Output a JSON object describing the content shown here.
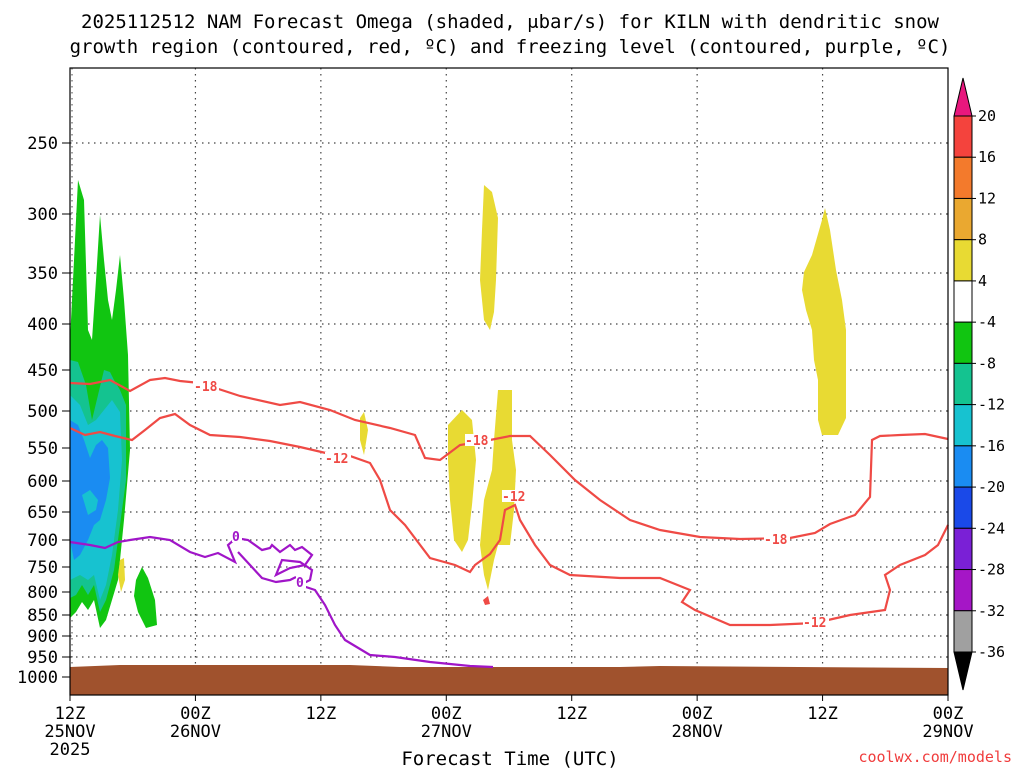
{
  "chart_data": {
    "type": "contour",
    "title_line1": "2025112512 NAM Forecast Omega (shaded, μbar/s) for KILN with dendritic snow",
    "title_line2": "growth region (contoured, red, ºC) and freezing level (contoured, purple, ºC)",
    "xlabel": "Forecast Time (UTC)",
    "credit": "coolwx.com/models",
    "x_ticks": [
      {
        "hour": 0,
        "label": "12Z",
        "sub": "25NOV",
        "sub2": "2025"
      },
      {
        "hour": 12,
        "label": "00Z",
        "sub": "26NOV",
        "sub2": ""
      },
      {
        "hour": 24,
        "label": "12Z",
        "sub": "",
        "sub2": ""
      },
      {
        "hour": 36,
        "label": "00Z",
        "sub": "27NOV",
        "sub2": ""
      },
      {
        "hour": 48,
        "label": "12Z",
        "sub": "",
        "sub2": ""
      },
      {
        "hour": 60,
        "label": "00Z",
        "sub": "28NOV",
        "sub2": ""
      },
      {
        "hour": 72,
        "label": "12Z",
        "sub": "",
        "sub2": ""
      },
      {
        "hour": 84,
        "label": "00Z",
        "sub": "29NOV",
        "sub2": ""
      }
    ],
    "y_ticks": [
      "250",
      "300",
      "350",
      "400",
      "450",
      "500",
      "550",
      "600",
      "650",
      "700",
      "750",
      "800",
      "850",
      "900",
      "950",
      "1000"
    ],
    "colorbar": {
      "labels": [
        "20",
        "16",
        "12",
        "8",
        "4",
        "-4",
        "-8",
        "-12",
        "-16",
        "-20",
        "-24",
        "-28",
        "-32",
        "-36"
      ],
      "colors": [
        "#e8177d",
        "#f4433d",
        "#f37a2c",
        "#eaa830",
        "#e8da33",
        "#ffffff",
        "#11c511",
        "#14c390",
        "#17c2d0",
        "#1a8cf2",
        "#1a49e8",
        "#7a20d6",
        "#a516c6",
        "#a0a0a0",
        "#000000"
      ]
    },
    "contour_labels": {
      "dgz_upper": "-18",
      "dgz_lower": "-12",
      "freezing": "0"
    },
    "colors": {
      "dgz": "#ef4a45",
      "freezing": "#a015c8",
      "terrain": "#a0522d",
      "credit": "#f03c3c"
    }
  }
}
